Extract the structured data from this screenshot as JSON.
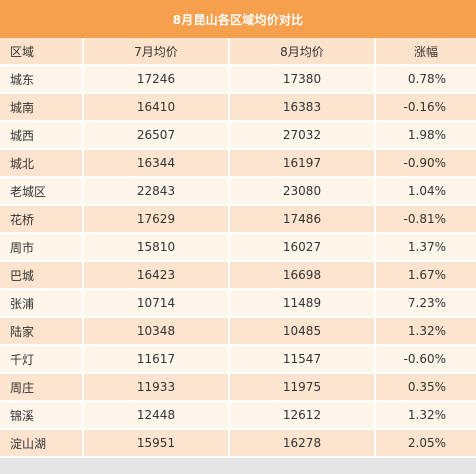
{
  "title": "8月昆山各区域均价对比",
  "headers": [
    "区域",
    "7月均价",
    "8月均价",
    "涨幅"
  ],
  "rows": [
    [
      "城东",
      "17246",
      "17380",
      "0.78%"
    ],
    [
      "城南",
      "16410",
      "16383",
      "-0.16%"
    ],
    [
      "城西",
      "26507",
      "27032",
      "1.98%"
    ],
    [
      "城北",
      "16344",
      "16197",
      "-0.90%"
    ],
    [
      "老城区",
      "22843",
      "23080",
      "1.04%"
    ],
    [
      "花桥",
      "17629",
      "17486",
      "-0.81%"
    ],
    [
      "周市",
      "15810",
      "16027",
      "1.37%"
    ],
    [
      "巴城",
      "16423",
      "16698",
      "1.67%"
    ],
    [
      "张浦",
      "10714",
      "11489",
      "7.23%"
    ],
    [
      "陆家",
      "10348",
      "10485",
      "1.32%"
    ],
    [
      "千灯",
      "11617",
      "11547",
      "-0.60%"
    ],
    [
      "周庄",
      "11933",
      "11975",
      "0.35%"
    ],
    [
      "锦溪",
      "12448",
      "12612",
      "1.32%"
    ],
    [
      "淀山湖",
      "15951",
      "16278",
      "2.05%"
    ]
  ]
}
